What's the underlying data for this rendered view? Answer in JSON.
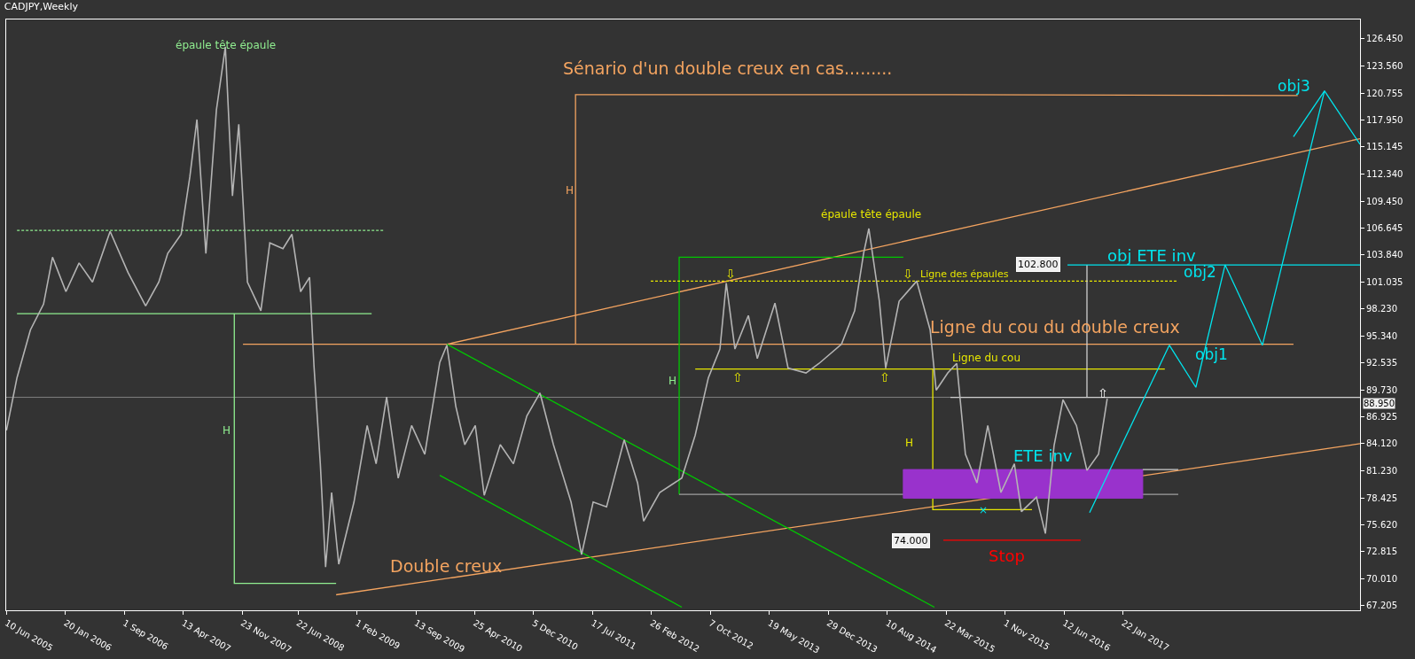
{
  "chart_data": {
    "type": "line",
    "title": "CADJPY,Weekly",
    "xlim": [
      "2005-06-09",
      "2019-07-12"
    ],
    "xticks": [
      {
        "value": "2005-06-10",
        "label": "10 Jun 2005"
      },
      {
        "value": "2006-01-20",
        "label": "20 Jan 2006"
      },
      {
        "value": "2006-09-01",
        "label": "1 Sep 2006"
      },
      {
        "value": "2007-04-13",
        "label": "13 Apr 2007"
      },
      {
        "value": "2007-11-23",
        "label": "23 Nov 2007"
      },
      {
        "value": "2008-06-22",
        "label": "22 Jun 2008"
      },
      {
        "value": "2009-02-01",
        "label": "1 Feb 2009"
      },
      {
        "value": "2009-09-13",
        "label": "13 Sep 2009"
      },
      {
        "value": "2010-04-25",
        "label": "25 Apr 2010"
      },
      {
        "value": "2010-12-05",
        "label": "5 Dec 2010"
      },
      {
        "value": "2011-07-17",
        "label": "17 Jul 2011"
      },
      {
        "value": "2012-02-26",
        "label": "26 Feb 2012"
      },
      {
        "value": "2012-10-07",
        "label": "7 Oct 2012"
      },
      {
        "value": "2013-05-19",
        "label": "19 May 2013"
      },
      {
        "value": "2013-12-29",
        "label": "29 Dec 2013"
      },
      {
        "value": "2014-08-10",
        "label": "10 Aug 2014"
      },
      {
        "value": "2015-03-22",
        "label": "22 Mar 2015"
      },
      {
        "value": "2015-11-01",
        "label": "1 Nov 2015"
      },
      {
        "value": "2016-06-12",
        "label": "12 Jun 2016"
      },
      {
        "value": "2017-01-22",
        "label": "22 Jan 2017"
      }
    ],
    "ylim": [
      66.68,
      128.46
    ],
    "yticks": [
      {
        "value": 67.205,
        "label": "67.205"
      },
      {
        "value": 70.01,
        "label": "70.010"
      },
      {
        "value": 72.815,
        "label": "72.815"
      },
      {
        "value": 75.62,
        "label": "75.620"
      },
      {
        "value": 78.425,
        "label": "78.425"
      },
      {
        "value": 81.23,
        "label": "81.230"
      },
      {
        "value": 84.12,
        "label": "84.120"
      },
      {
        "value": 86.925,
        "label": "86.925"
      },
      {
        "value": 89.73,
        "label": "89.730"
      },
      {
        "value": 92.535,
        "label": "92.535"
      },
      {
        "value": 95.34,
        "label": "95.340"
      },
      {
        "value": 98.23,
        "label": "98.230"
      },
      {
        "value": 101.035,
        "label": "101.035"
      },
      {
        "value": 103.84,
        "label": "103.840"
      },
      {
        "value": 106.645,
        "label": "106.645"
      },
      {
        "value": 109.45,
        "label": "109.450"
      },
      {
        "value": 112.34,
        "label": "112.340"
      },
      {
        "value": 115.145,
        "label": "115.145"
      },
      {
        "value": 117.95,
        "label": "117.950"
      },
      {
        "value": 120.755,
        "label": "120.755"
      },
      {
        "value": 123.56,
        "label": "123.560"
      },
      {
        "value": 126.45,
        "label": "126.450"
      }
    ],
    "grid": false,
    "series": [
      {
        "color": "#b4b4b4",
        "x": [
          "2005-06-10",
          "2005-07-20",
          "2005-09-09",
          "2005-10-29",
          "2005-12-02",
          "2006-01-22",
          "2006-03-13",
          "2006-05-03",
          "2006-07-09",
          "2006-09-15",
          "2006-11-21",
          "2007-01-10",
          "2007-02-13",
          "2007-04-05",
          "2007-05-08",
          "2007-06-04",
          "2007-07-08",
          "2007-08-17",
          "2007-09-20",
          "2007-10-17",
          "2007-11-10",
          "2007-12-13",
          "2008-02-02",
          "2008-03-07",
          "2008-04-26",
          "2008-05-30",
          "2008-07-02",
          "2008-08-05",
          "2008-08-22",
          "2008-09-15",
          "2008-10-05",
          "2008-10-28",
          "2008-11-24",
          "2009-01-21",
          "2009-03-12",
          "2009-04-15",
          "2009-05-25",
          "2009-07-08",
          "2009-08-28",
          "2009-10-17",
          "2009-12-13",
          "2010-01-09",
          "2010-02-12",
          "2010-03-18",
          "2010-04-27",
          "2010-05-31",
          "2010-07-31",
          "2010-09-19",
          "2010-11-09",
          "2010-12-29",
          "2011-02-18",
          "2011-04-26",
          "2011-06-05",
          "2011-07-19",
          "2011-09-08",
          "2011-11-14",
          "2012-01-04",
          "2012-01-27",
          "2012-03-28",
          "2012-06-20",
          "2012-08-10",
          "2012-09-29",
          "2012-11-12",
          "2012-12-06",
          "2013-01-08",
          "2013-02-28",
          "2013-04-03",
          "2013-06-09",
          "2013-07-29",
          "2013-10-05",
          "2013-11-24",
          "2014-02-17",
          "2014-04-08",
          "2014-05-12",
          "2014-06-01",
          "2014-07-11",
          "2014-08-04",
          "2014-09-24",
          "2014-11-30",
          "2015-01-20",
          "2015-02-12",
          "2015-03-28",
          "2015-05-01",
          "2015-06-03",
          "2015-07-17",
          "2015-08-27",
          "2015-10-16",
          "2015-12-06",
          "2016-01-02",
          "2016-02-28",
          "2016-04-02",
          "2016-05-05",
          "2016-06-08",
          "2016-07-29",
          "2016-09-07",
          "2016-10-21",
          "2016-11-23"
        ],
        "values": [
          85.5,
          91,
          96,
          98.7,
          103.6,
          100,
          103,
          101,
          106.3,
          102,
          98.5,
          101,
          104,
          106,
          112,
          118,
          104,
          119,
          125.6,
          110,
          117.5,
          101,
          98,
          105.1,
          104.5,
          106,
          100,
          101.5,
          92.2,
          82,
          71.2,
          79,
          71.5,
          78,
          86,
          82,
          89,
          80.5,
          86,
          83,
          92.6,
          94.4,
          88,
          84,
          86,
          78.7,
          84,
          82,
          87,
          89.4,
          84,
          78,
          72.5,
          78,
          77.5,
          84.5,
          80,
          76,
          79,
          80.5,
          85,
          91,
          94,
          100.9,
          94,
          97.5,
          93,
          98.8,
          92,
          91.5,
          92.5,
          94.5,
          98,
          104,
          106.6,
          99,
          92,
          99,
          101.1,
          96,
          89.7,
          91.5,
          92.5,
          83,
          80,
          86,
          79,
          82,
          77,
          78.5,
          74.7,
          83.9,
          88.7,
          86,
          81.3,
          83,
          88.8
        ]
      },
      {
        "color": "#90ee90",
        "line_style": "dashed",
        "x": [
          "2005-07-20",
          "2009-05-12"
        ],
        "values": [
          106.4,
          106.4
        ]
      },
      {
        "color": "#90ee90",
        "x": [
          "2005-07-20",
          "2009-03-29"
        ],
        "values": [
          97.7,
          97.7
        ]
      },
      {
        "color": "#90ee90",
        "x": [
          "2007-10-24",
          "2007-10-24",
          "2008-11-14"
        ],
        "values": [
          97.7,
          69.5,
          69.5
        ]
      },
      {
        "color": "#f4a460",
        "x": [
          "2007-11-26",
          "2018-11-01"
        ],
        "values": [
          94.5,
          94.5
        ]
      },
      {
        "color": "#f4a460",
        "x": [
          "2011-05-13",
          "2011-05-13",
          "2015-04-14",
          "2018-11-17"
        ],
        "values": [
          94.5,
          120.6,
          120.6,
          120.5
        ]
      },
      {
        "color": "#f4a460",
        "x": [
          "2010-01-09",
          "2019-07-12"
        ],
        "values": [
          94.5,
          116.0
        ]
      },
      {
        "color": "#f4a460",
        "x": [
          "2008-11-14",
          "2019-07-12"
        ],
        "values": [
          68.3,
          84.1
        ]
      },
      {
        "color": "#00c800",
        "x": [
          "2010-01-09",
          "2015-02-05"
        ],
        "values": [
          94.5,
          67.0
        ]
      },
      {
        "color": "#00c800",
        "x": [
          "2009-12-13",
          "2012-06-20"
        ],
        "values": [
          80.8,
          67.0
        ]
      },
      {
        "color": "#00c800",
        "x": [
          "2012-06-10",
          "2012-06-10",
          "2014-10-10"
        ],
        "values": [
          78.8,
          103.6,
          103.6
        ]
      },
      {
        "color": "#a0a0a0",
        "x": [
          "2012-06-10",
          "2017-08-20"
        ],
        "values": [
          78.8,
          78.8
        ]
      },
      {
        "color": "#e6e600",
        "line_style": "dashed",
        "x": [
          "2012-02-23",
          "2017-08-20"
        ],
        "values": [
          101.1,
          101.1
        ]
      },
      {
        "color": "#e6e600",
        "x": [
          "2012-08-10",
          "2017-06-30"
        ],
        "values": [
          91.9,
          91.9
        ]
      },
      {
        "color": "#e6e600",
        "x": [
          "2015-01-30",
          "2015-01-30",
          "2016-02-11"
        ],
        "values": [
          91.9,
          77.2,
          77.2
        ]
      },
      {
        "type": "area",
        "color": "#9932cc",
        "x": [
          "2014-10-10",
          "2017-04-07",
          "2017-04-07",
          "2014-10-10",
          "2014-10-10"
        ],
        "values": [
          81.4,
          81.4,
          78.4,
          78.4,
          81.4
        ]
      },
      {
        "color": "#d0d0d0",
        "x": [
          "2017-04-07",
          "2017-08-20"
        ],
        "values": [
          81.4,
          81.4
        ]
      },
      {
        "color": "#d0d0d0",
        "x": [
          "2015-04-07",
          "2019-07-12"
        ],
        "values": [
          88.95,
          88.95
        ]
      },
      {
        "color": "#d0d0d0",
        "x": [
          "2016-09-07",
          "2016-09-07"
        ],
        "values": [
          88.95,
          102.8
        ]
      },
      {
        "color": "#00e5ee",
        "x": [
          "2016-06-25",
          "2019-07-12"
        ],
        "values": [
          102.8,
          102.8
        ]
      },
      {
        "color": "#ff0000",
        "x": [
          "2015-03-11",
          "2016-08-14"
        ],
        "values": [
          74.0,
          74.0
        ]
      },
      {
        "color": "#00e5ee",
        "x": [
          "2016-09-17",
          "2017-07-17",
          "2017-10-26",
          "2018-02-14",
          "2018-07-06",
          "2019-02-27",
          "2019-07-12"
        ],
        "values": [
          76.9,
          94.4,
          90.0,
          102.8,
          94.4,
          121.0,
          115.4
        ]
      },
      {
        "color": "#00e5ee",
        "x": [
          "2018-11-01",
          "2019-02-27"
        ],
        "values": [
          116.2,
          121.0
        ]
      }
    ],
    "ref_lines": [
      {
        "axis": "y",
        "value": 88.95,
        "label": "88.950",
        "color": "#808080"
      }
    ],
    "annotations": [
      "épaule tête épaule",
      "Sénario d'un double creux en cas.........",
      "H",
      "H",
      "épaule tête épaule",
      "Ligne des épaules",
      "Ligne du cou du double creux",
      "Ligne du cou",
      "H",
      "H",
      "ETE inv",
      "×",
      "74.000",
      "Stop",
      "Double creux",
      "102.800",
      "obj ETE inv",
      "obj2",
      "obj1",
      "obj3",
      "⇩",
      "⇩",
      "⇧",
      "⇧",
      "⇧"
    ]
  }
}
